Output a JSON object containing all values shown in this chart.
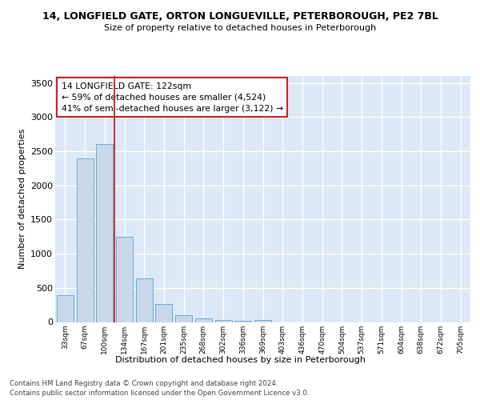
{
  "title1": "14, LONGFIELD GATE, ORTON LONGUEVILLE, PETERBOROUGH, PE2 7BL",
  "title2": "Size of property relative to detached houses in Peterborough",
  "xlabel": "Distribution of detached houses by size in Peterborough",
  "ylabel": "Number of detached properties",
  "categories": [
    "33sqm",
    "67sqm",
    "100sqm",
    "134sqm",
    "167sqm",
    "201sqm",
    "235sqm",
    "268sqm",
    "302sqm",
    "336sqm",
    "369sqm",
    "403sqm",
    "436sqm",
    "470sqm",
    "504sqm",
    "537sqm",
    "571sqm",
    "604sqm",
    "638sqm",
    "672sqm",
    "705sqm"
  ],
  "values": [
    390,
    2400,
    2600,
    1250,
    640,
    260,
    105,
    50,
    35,
    20,
    30,
    0,
    0,
    0,
    0,
    0,
    0,
    0,
    0,
    0,
    0
  ],
  "bar_color": "#c8d8ea",
  "bar_edge_color": "#6aaad4",
  "vline_color": "#cc2222",
  "annotation_text": "14 LONGFIELD GATE: 122sqm\n← 59% of detached houses are smaller (4,524)\n41% of semi-detached houses are larger (3,122) →",
  "annotation_box_color": "#ffffff",
  "annotation_box_edge": "#cc2222",
  "ylim": [
    0,
    3600
  ],
  "yticks": [
    0,
    500,
    1000,
    1500,
    2000,
    2500,
    3000,
    3500
  ],
  "background_color": "#dce8f5",
  "footer1": "Contains HM Land Registry data © Crown copyright and database right 2024.",
  "footer2": "Contains public sector information licensed under the Open Government Licence v3.0."
}
